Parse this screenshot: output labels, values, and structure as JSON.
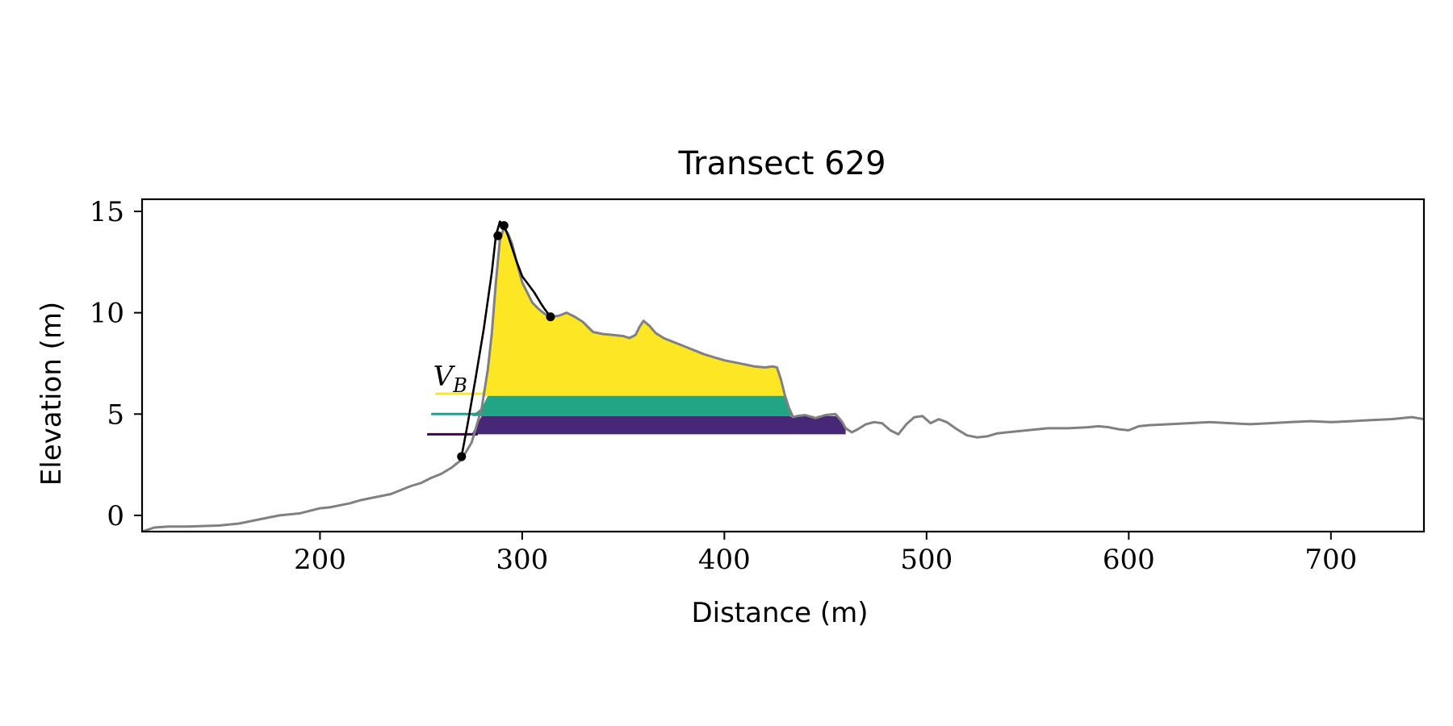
{
  "chart_data": {
    "type": "area",
    "title": "Transect 629",
    "xlabel": "Distance (m)",
    "ylabel": "Elevation (m)",
    "xlim": [
      112,
      746
    ],
    "ylim": [
      -0.8,
      15.6
    ],
    "xticks": [
      200,
      300,
      400,
      500,
      600,
      700
    ],
    "yticks": [
      0,
      5,
      10,
      15
    ],
    "grid": false,
    "legend": "none",
    "annotation": "V_B",
    "profile": {
      "color": "#808080",
      "x": [
        112,
        118,
        125,
        135,
        150,
        160,
        170,
        180,
        190,
        200,
        205,
        210,
        215,
        220,
        225,
        230,
        235,
        240,
        245,
        250,
        255,
        260,
        265,
        270,
        275,
        280,
        283,
        285,
        287,
        289,
        291,
        293,
        295,
        297,
        300,
        303,
        305,
        308,
        311,
        314,
        318,
        322,
        326,
        330,
        335,
        340,
        345,
        350,
        353,
        356,
        358,
        360,
        363,
        366,
        370,
        375,
        380,
        385,
        390,
        395,
        400,
        405,
        410,
        415,
        420,
        424,
        426,
        428,
        430,
        432,
        434,
        436,
        440,
        445,
        450,
        455,
        458,
        460,
        463,
        466,
        470,
        474,
        478,
        482,
        486,
        490,
        494,
        498,
        502,
        506,
        510,
        515,
        520,
        525,
        530,
        535,
        540,
        545,
        550,
        555,
        560,
        570,
        580,
        585,
        590,
        595,
        600,
        605,
        610,
        620,
        630,
        640,
        650,
        660,
        670,
        680,
        690,
        700,
        710,
        720,
        730,
        740,
        746
      ],
      "y": [
        -0.8,
        -0.6,
        -0.55,
        -0.55,
        -0.5,
        -0.4,
        -0.2,
        0.0,
        0.1,
        0.35,
        0.4,
        0.5,
        0.6,
        0.75,
        0.85,
        0.95,
        1.05,
        1.25,
        1.45,
        1.6,
        1.85,
        2.05,
        2.35,
        2.75,
        3.6,
        5.3,
        7.2,
        9.0,
        11.5,
        13.6,
        14.2,
        13.9,
        13.4,
        12.6,
        11.5,
        10.9,
        10.5,
        10.2,
        9.95,
        9.8,
        9.85,
        10.0,
        9.8,
        9.55,
        9.05,
        8.95,
        8.9,
        8.85,
        8.75,
        8.9,
        9.3,
        9.6,
        9.35,
        9.0,
        8.75,
        8.55,
        8.35,
        8.15,
        7.95,
        7.8,
        7.65,
        7.55,
        7.45,
        7.35,
        7.3,
        7.35,
        7.3,
        6.7,
        5.9,
        5.3,
        4.85,
        4.9,
        4.95,
        4.8,
        4.95,
        5.0,
        4.65,
        4.3,
        4.1,
        4.25,
        4.5,
        4.6,
        4.55,
        4.2,
        4.0,
        4.5,
        4.85,
        4.9,
        4.55,
        4.75,
        4.6,
        4.25,
        3.95,
        3.85,
        3.9,
        4.05,
        4.1,
        4.15,
        4.2,
        4.25,
        4.3,
        4.3,
        4.35,
        4.4,
        4.35,
        4.25,
        4.2,
        4.4,
        4.45,
        4.5,
        4.55,
        4.6,
        4.55,
        4.5,
        4.55,
        4.6,
        4.65,
        4.6,
        4.65,
        4.7,
        4.75,
        4.85,
        4.75
      ]
    },
    "dune_line": {
      "color": "#000000",
      "x": [
        270,
        273,
        277,
        281,
        285,
        287,
        289,
        291,
        293,
        295,
        297,
        300,
        303,
        306,
        309,
        311,
        314
      ],
      "y": [
        2.9,
        4.5,
        6.8,
        9.2,
        12.0,
        13.8,
        14.5,
        14.3,
        13.8,
        13.2,
        12.6,
        11.8,
        11.4,
        11.0,
        10.5,
        10.2,
        9.8
      ]
    },
    "points": [
      {
        "x": 270,
        "y": 2.9
      },
      {
        "x": 288,
        "y": 13.8
      },
      {
        "x": 291,
        "y": 14.3
      },
      {
        "x": 314,
        "y": 9.8
      }
    ],
    "bands": [
      {
        "color": "#fde725",
        "lower": 5.9,
        "clip_x": [
          275,
          430
        ],
        "label_line": {
          "x0": 257,
          "x1": 282,
          "y": 6.0
        }
      },
      {
        "color": "#21a585",
        "lower": 4.9,
        "upper": 5.9,
        "clip_x": [
          275,
          452
        ],
        "label_line": {
          "x0": 255,
          "x1": 280,
          "y": 5.0
        }
      },
      {
        "color": "#472877",
        "lower": 4.0,
        "upper": 4.9,
        "clip_x": [
          275,
          460
        ],
        "label_line": {
          "x0": 253,
          "x1": 278,
          "y": 4.0
        }
      }
    ],
    "band_line_colors": [
      "#fde725",
      "#2a9a8a",
      "#440154"
    ]
  }
}
